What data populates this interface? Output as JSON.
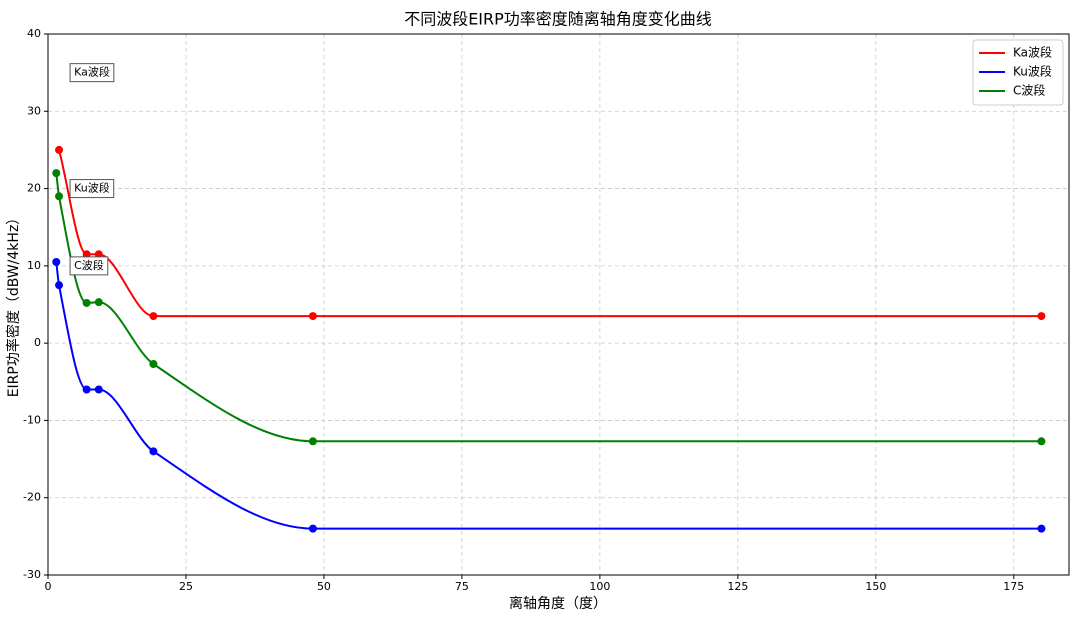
{
  "chart_data": {
    "type": "line",
    "title": "不同波段EIRP功率密度随离轴角度变化曲线",
    "x_label": "离轴角度（度）",
    "y_label": "EIRP功率密度（dBW/4kHz）",
    "xlim": [
      0,
      185
    ],
    "xticks": [
      0,
      25,
      50,
      75,
      100,
      125,
      150,
      175
    ],
    "ylim": [
      -30,
      40
    ],
    "yticks": [
      -30,
      -20,
      -10,
      0,
      10,
      20,
      30,
      40
    ],
    "grid": true,
    "legend": "upper right",
    "series": [
      {
        "name": "Ka波段",
        "color": "#ff0000",
        "x": [
          2,
          7,
          9.2,
          19.1,
          48,
          180
        ],
        "values": [
          25,
          11.5,
          11.5,
          3.5,
          3.5,
          3.5
        ]
      },
      {
        "name": "Ku波段",
        "color": "#0000ff",
        "x": [
          1.5,
          2,
          7,
          9.2,
          19.1,
          48,
          180
        ],
        "values": [
          10.5,
          7.5,
          -6,
          -6,
          -14,
          -24,
          -24
        ]
      },
      {
        "name": "C波段",
        "color": "#008000",
        "x": [
          1.5,
          2,
          7,
          9.2,
          19.1,
          48,
          180
        ],
        "values": [
          22,
          19,
          5.2,
          5.3,
          -2.7,
          -12.7,
          -12.7
        ]
      }
    ],
    "annotations": [
      {
        "text": "Ka波段",
        "x": 4,
        "y": 35,
        "color": "#ff0000"
      },
      {
        "text": "Ku波段",
        "x": 4,
        "y": 20,
        "color": "#0000ff"
      },
      {
        "text": "C波段",
        "x": 4,
        "y": 10,
        "color": "#008000"
      }
    ]
  }
}
